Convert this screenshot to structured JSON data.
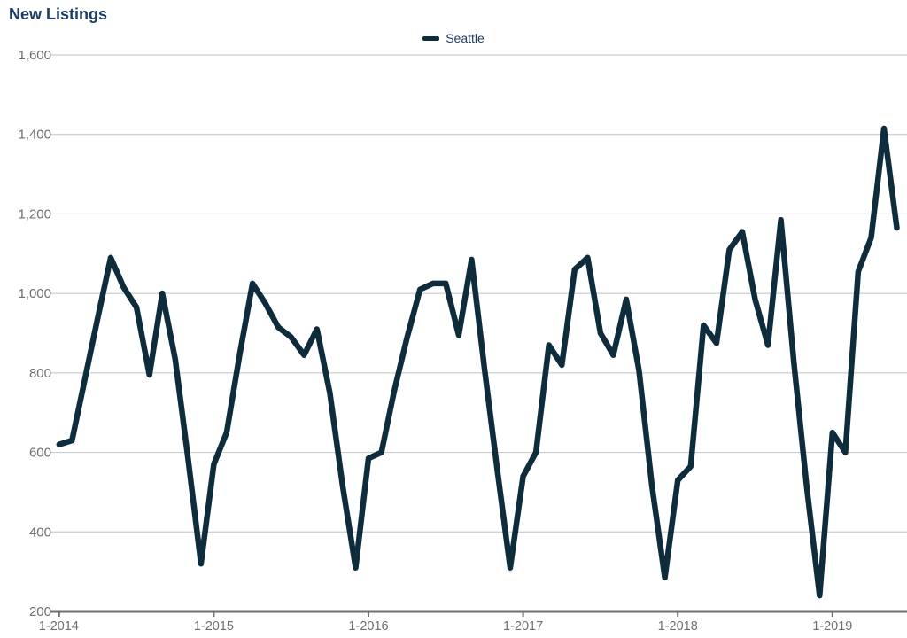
{
  "page": {
    "title": "New Listings"
  },
  "legend": {
    "label": "Seattle"
  },
  "colors": {
    "line": "#0f2c3c",
    "title": "#1e3c64",
    "legend_text": "#1b3a5c",
    "axis_text": "#6e6e6e",
    "gridline": "#cccccc",
    "axis_line": "#6f6f6f",
    "background": "#ffffff"
  },
  "chart_data": {
    "type": "line",
    "title": "New Listings",
    "xlabel": "",
    "ylabel": "",
    "x_start": "1-2014",
    "x_interval": "month",
    "x_tick_labels": [
      "1-2014",
      "1-2015",
      "1-2016",
      "1-2017",
      "1-2018",
      "1-2019"
    ],
    "y_ticks": [
      200,
      400,
      600,
      800,
      1000,
      1200,
      1400,
      1600
    ],
    "y_tick_labels": [
      "200",
      "400",
      "600",
      "800",
      "1,000",
      "1,200",
      "1,400",
      "1,600"
    ],
    "ylim": [
      200,
      1600
    ],
    "grid": true,
    "legend_position": "top-center",
    "series": [
      {
        "name": "Seattle",
        "values": [
          620,
          630,
          785,
          940,
          1090,
          1015,
          965,
          795,
          1000,
          835,
          585,
          320,
          570,
          650,
          845,
          1025,
          975,
          915,
          890,
          845,
          910,
          750,
          515,
          310,
          585,
          600,
          755,
          890,
          1010,
          1025,
          1025,
          895,
          1085,
          810,
          555,
          310,
          540,
          600,
          870,
          820,
          1060,
          1090,
          900,
          845,
          985,
          805,
          515,
          285,
          530,
          565,
          920,
          875,
          1110,
          1155,
          985,
          870,
          1185,
          830,
          515,
          240,
          650,
          600,
          1055,
          1140,
          1415,
          1165
        ]
      }
    ]
  }
}
